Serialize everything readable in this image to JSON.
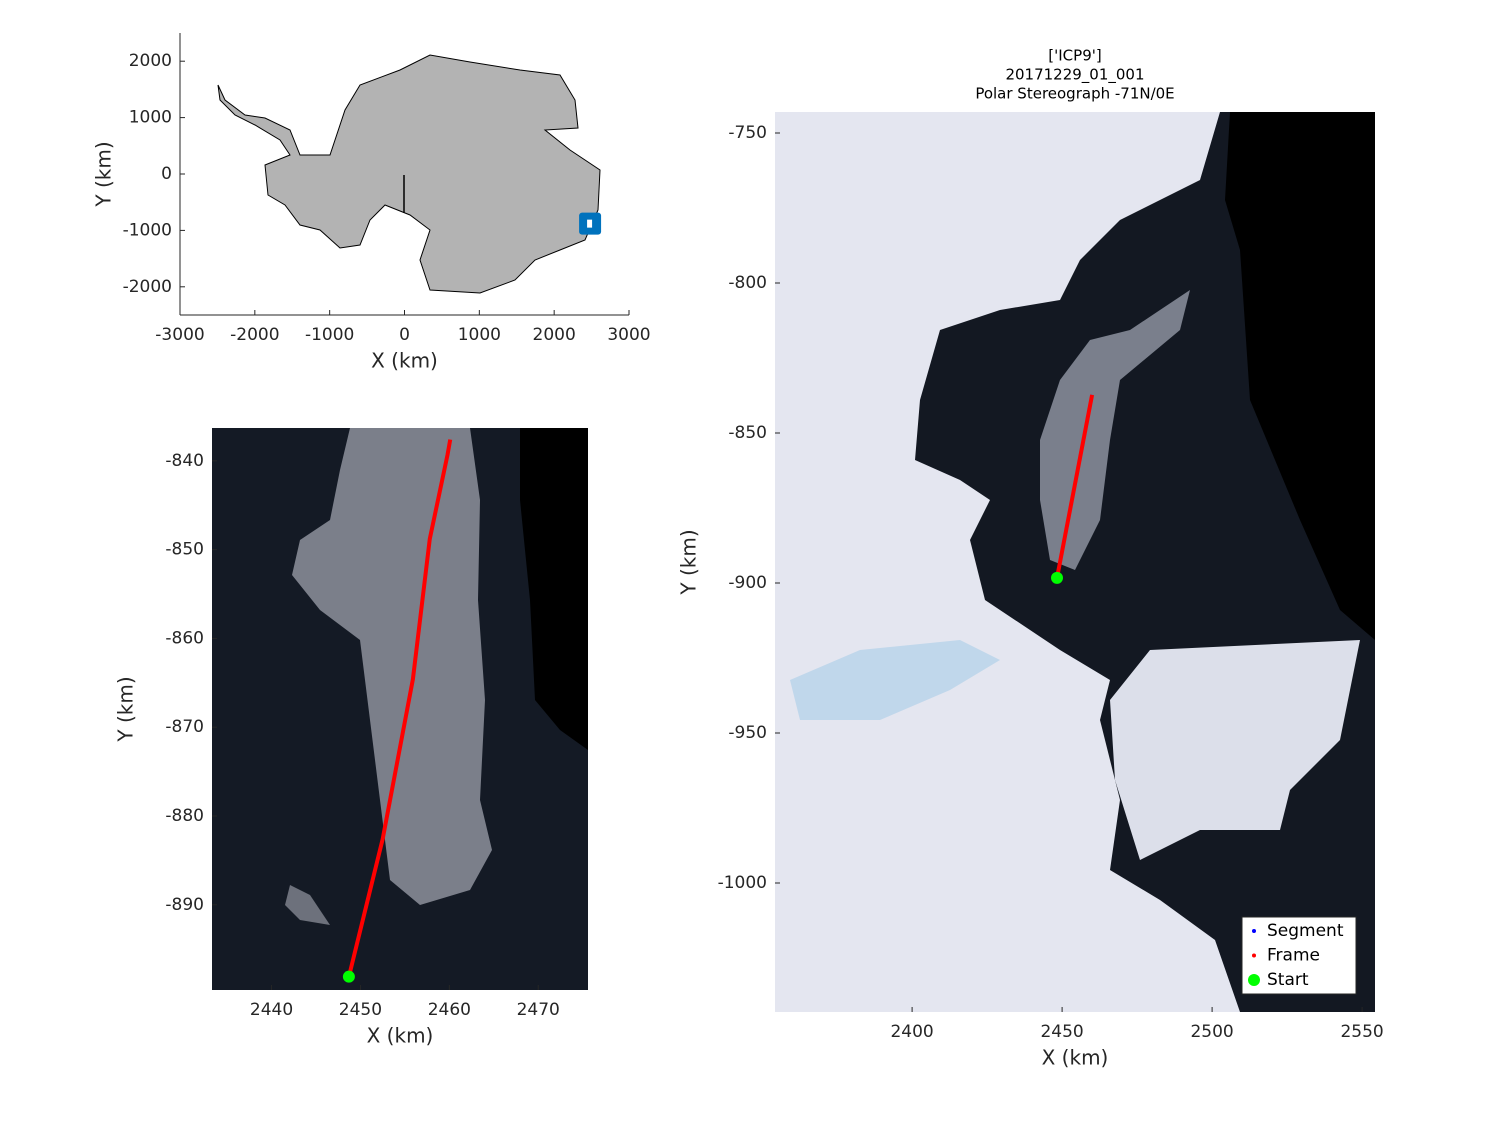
{
  "chart_data": [
    {
      "type": "overview",
      "xlabel": "X (km)",
      "ylabel": "Y (km)",
      "xlim": [
        -3000,
        3000
      ],
      "ylim": [
        -2500,
        2500
      ],
      "xticks": [
        -3000,
        -2000,
        -1000,
        0,
        1000,
        2000,
        3000
      ],
      "yticks": [
        -2000,
        -1000,
        0,
        1000,
        2000
      ],
      "location": {
        "x": 2480,
        "y": -880,
        "color": "#0072bd"
      }
    },
    {
      "type": "track",
      "xlabel": "X (km)",
      "ylabel": "Y (km)",
      "xlim": [
        2433.3,
        2475.6
      ],
      "ylim": [
        -899.6,
        -836.3
      ],
      "xticks": [
        2440,
        2450,
        2460,
        2470
      ],
      "yticks": [
        -890,
        -880,
        -870,
        -860,
        -850,
        -840
      ],
      "series": [
        {
          "name": "Frame",
          "color": "#ff0000",
          "x": [
            2448.7,
            2452.5,
            2455.9,
            2457.8,
            2459.8,
            2460.1
          ],
          "y": [
            -898.1,
            -882.6,
            -864.6,
            -848.8,
            -839.3,
            -837.6
          ]
        },
        {
          "name": "Start",
          "color": "#00ff00",
          "x": [
            2448.7
          ],
          "y": [
            -898.1
          ]
        }
      ]
    },
    {
      "type": "track",
      "title": [
        "['ICP9']",
        "20171229_01_001",
        "Polar Stereograph -71N/0E"
      ],
      "xlabel": "X (km)",
      "ylabel": "Y (km)",
      "xlim": [
        2354.3,
        2554.3
      ],
      "ylim": [
        -1043,
        -743
      ],
      "xticks": [
        2400,
        2450,
        2500,
        2550
      ],
      "yticks": [
        -1000,
        -950,
        -900,
        -850,
        -800,
        -750
      ],
      "legend": "lower right",
      "series": [
        {
          "name": "Segment",
          "color": "#0000ff",
          "x": [
            2448.3,
            2460
          ],
          "y": [
            -898.3,
            -837.3
          ]
        },
        {
          "name": "Frame",
          "color": "#ff0000",
          "x": [
            2448.3,
            2460
          ],
          "y": [
            -898.3,
            -837.3
          ]
        },
        {
          "name": "Start",
          "color": "#00ff00",
          "x": [
            2448.3
          ],
          "y": [
            -898.3
          ]
        }
      ]
    }
  ]
}
